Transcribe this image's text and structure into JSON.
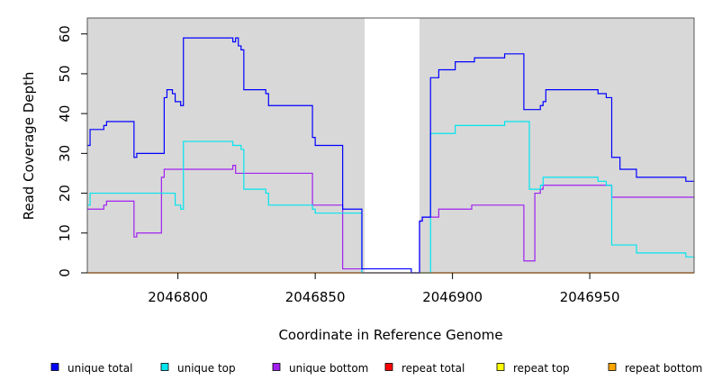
{
  "chart_data": {
    "type": "line",
    "title": "",
    "xlabel": "Coordinate in Reference Genome",
    "ylabel": "Read Coverage Depth",
    "xlim": [
      2046767,
      2046988
    ],
    "ylim": [
      0,
      64
    ],
    "x_ticks": [
      "2046800",
      "2046850",
      "2046900",
      "2046950"
    ],
    "y_ticks": [
      "0",
      "10",
      "20",
      "30",
      "40",
      "50",
      "60"
    ],
    "grid": false,
    "legend_position": "bottom",
    "gray_regions": [
      [
        2046767,
        2046868
      ],
      [
        2046888,
        2046988
      ]
    ],
    "series": [
      {
        "name": "unique total",
        "color": "#0000ff",
        "points": [
          [
            2046767,
            32
          ],
          [
            2046768,
            36
          ],
          [
            2046773,
            37
          ],
          [
            2046774,
            38
          ],
          [
            2046784,
            29
          ],
          [
            2046785,
            30
          ],
          [
            2046795,
            44
          ],
          [
            2046796,
            46
          ],
          [
            2046798,
            45
          ],
          [
            2046799,
            43
          ],
          [
            2046801,
            42
          ],
          [
            2046802,
            59
          ],
          [
            2046820,
            58
          ],
          [
            2046821,
            59
          ],
          [
            2046822,
            57
          ],
          [
            2046823,
            56
          ],
          [
            2046824,
            46
          ],
          [
            2046832,
            45
          ],
          [
            2046833,
            42
          ],
          [
            2046849,
            34
          ],
          [
            2046850,
            32
          ],
          [
            2046860,
            16
          ],
          [
            2046867,
            1
          ],
          [
            2046885,
            0
          ],
          [
            2046888,
            13
          ],
          [
            2046889,
            14
          ],
          [
            2046892,
            49
          ],
          [
            2046895,
            51
          ],
          [
            2046901,
            53
          ],
          [
            2046908,
            54
          ],
          [
            2046919,
            55
          ],
          [
            2046926,
            41
          ],
          [
            2046932,
            42
          ],
          [
            2046933,
            43
          ],
          [
            2046934,
            46
          ],
          [
            2046953,
            45
          ],
          [
            2046956,
            44
          ],
          [
            2046958,
            29
          ],
          [
            2046961,
            26
          ],
          [
            2046967,
            24
          ],
          [
            2046985,
            23
          ],
          [
            2046988,
            23
          ]
        ]
      },
      {
        "name": "unique top",
        "color": "#00e5ee",
        "points": [
          [
            2046767,
            17
          ],
          [
            2046768,
            20
          ],
          [
            2046799,
            17
          ],
          [
            2046801,
            16
          ],
          [
            2046802,
            33
          ],
          [
            2046820,
            32
          ],
          [
            2046823,
            31
          ],
          [
            2046824,
            21
          ],
          [
            2046832,
            20
          ],
          [
            2046833,
            17
          ],
          [
            2046849,
            16
          ],
          [
            2046850,
            15
          ],
          [
            2046867,
            0
          ],
          [
            2046892,
            35
          ],
          [
            2046901,
            37
          ],
          [
            2046919,
            38
          ],
          [
            2046928,
            21
          ],
          [
            2046929,
            21
          ],
          [
            2046932,
            22
          ],
          [
            2046933,
            24
          ],
          [
            2046953,
            23
          ],
          [
            2046956,
            22
          ],
          [
            2046958,
            7
          ],
          [
            2046967,
            5
          ],
          [
            2046985,
            4
          ],
          [
            2046988,
            4
          ]
        ]
      },
      {
        "name": "unique bottom",
        "color": "#a020f0",
        "points": [
          [
            2046767,
            16
          ],
          [
            2046773,
            17
          ],
          [
            2046774,
            18
          ],
          [
            2046784,
            9
          ],
          [
            2046785,
            10
          ],
          [
            2046794,
            24
          ],
          [
            2046795,
            26
          ],
          [
            2046820,
            27
          ],
          [
            2046821,
            25
          ],
          [
            2046849,
            17
          ],
          [
            2046860,
            1
          ],
          [
            2046867,
            0
          ],
          [
            2046888,
            13
          ],
          [
            2046889,
            14
          ],
          [
            2046895,
            16
          ],
          [
            2046907,
            17
          ],
          [
            2046926,
            3
          ],
          [
            2046930,
            20
          ],
          [
            2046932,
            21
          ],
          [
            2046933,
            22
          ],
          [
            2046958,
            19
          ],
          [
            2046988,
            19
          ]
        ]
      },
      {
        "name": "repeat total",
        "color": "#ff0000",
        "points": [
          [
            2046767,
            0
          ],
          [
            2046988,
            0
          ]
        ]
      },
      {
        "name": "repeat top",
        "color": "#ffff00",
        "points": [
          [
            2046767,
            0
          ],
          [
            2046988,
            0
          ]
        ]
      },
      {
        "name": "repeat bottom",
        "color": "#ffa500",
        "points": [
          [
            2046767,
            0
          ],
          [
            2046988,
            0
          ]
        ]
      }
    ]
  }
}
